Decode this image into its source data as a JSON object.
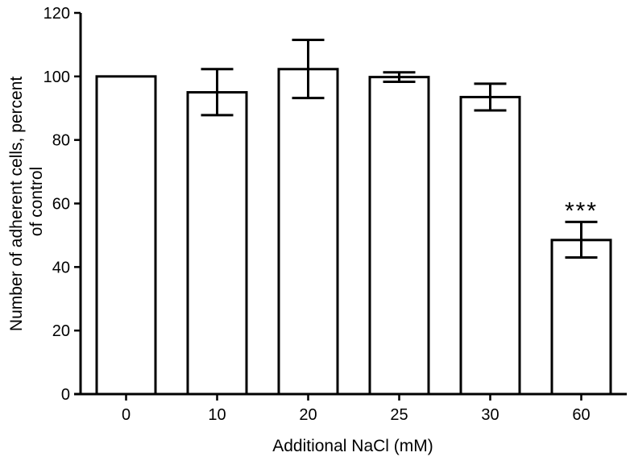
{
  "chart_data": {
    "type": "bar",
    "title": "",
    "xlabel": "Additional NaCl (mM)",
    "ylabel_lines": [
      "Number of adherent cells, percent",
      "of control"
    ],
    "categories": [
      "0",
      "10",
      "20",
      "25",
      "30",
      "60"
    ],
    "values": [
      100,
      95,
      102.3,
      99.8,
      93.5,
      48.5
    ],
    "error_low": [
      100,
      87.8,
      93.2,
      98.3,
      89.3,
      43
    ],
    "error_high": [
      100,
      102.3,
      111.5,
      101.3,
      97.7,
      54.2
    ],
    "annotations": [
      {
        "category": "60",
        "text": "***"
      }
    ],
    "yticks": [
      "0",
      "20",
      "40",
      "60",
      "80",
      "100",
      "120"
    ],
    "ylim": [
      0,
      120
    ],
    "grid": false,
    "bar_fill": "#ffffff",
    "bar_stroke": "#000000"
  }
}
